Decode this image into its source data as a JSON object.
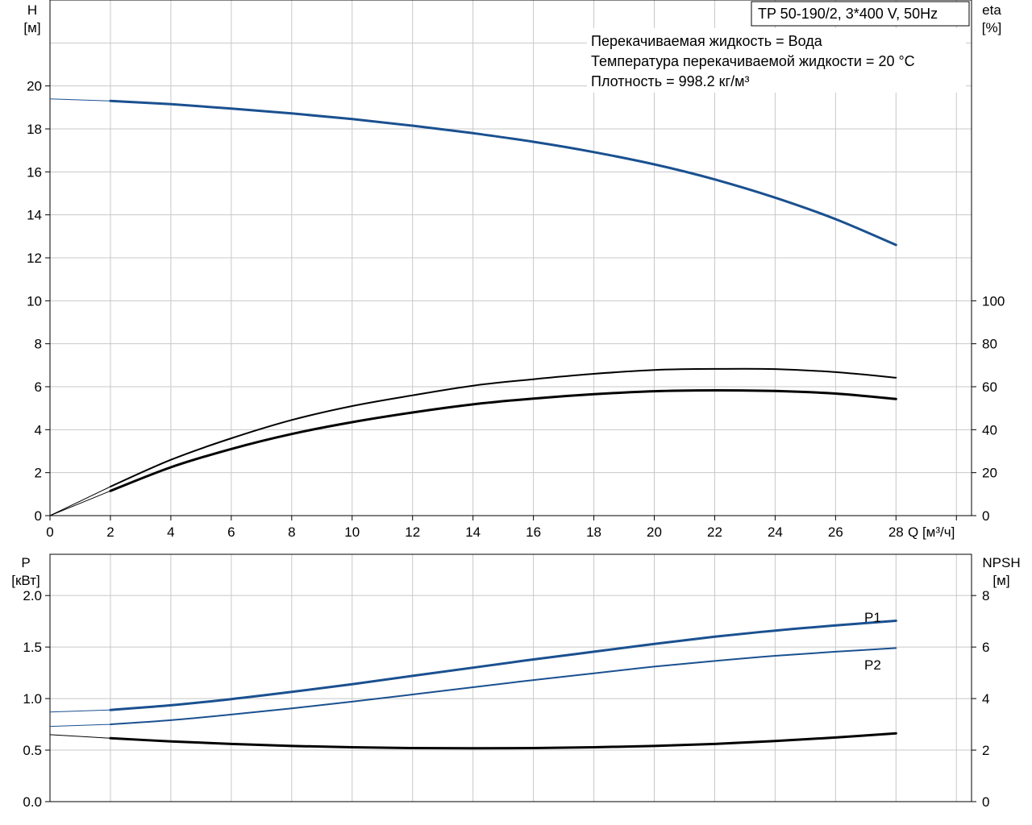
{
  "chart_data": [
    {
      "type": "line",
      "title": "TP 50-190/2, 3*400 V, 50Hz",
      "annotations": [
        "Перекачиваемая жидкость = Вода",
        "Температура перекачиваемой жидкости = 20 °C",
        "Плотность = 998.2 кг/м³"
      ],
      "xlabel": "Q [м³/ч]",
      "xlim": [
        0,
        30.5
      ],
      "x_ticks": [
        "0",
        "2",
        "4",
        "6",
        "8",
        "10",
        "12",
        "14",
        "16",
        "18",
        "20",
        "22",
        "24",
        "26",
        "28"
      ],
      "y_left_label": [
        "H",
        "[м]"
      ],
      "y_left_lim": [
        0,
        24
      ],
      "y_left_ticks": [
        "0",
        "2",
        "4",
        "6",
        "8",
        "10",
        "12",
        "14",
        "16",
        "18",
        "20"
      ],
      "y_right_label": [
        "eta",
        "[%]"
      ],
      "y_right_lim": [
        0,
        240
      ],
      "y_right_ticks": [
        "0",
        "20",
        "40",
        "60",
        "80",
        "100"
      ],
      "grid": true,
      "series": [
        {
          "axis": "left",
          "color": "#1a5090",
          "stroke": "thick",
          "x": [
            0,
            2,
            4,
            6,
            8,
            10,
            12,
            14,
            16,
            18,
            20,
            22,
            24,
            26,
            28
          ],
          "values": [
            19.4,
            19.3,
            19.15,
            18.95,
            18.72,
            18.46,
            18.15,
            17.8,
            17.4,
            16.92,
            16.35,
            15.65,
            14.8,
            13.8,
            12.6
          ]
        },
        {
          "axis": "right",
          "color": "#000000",
          "stroke": "thin",
          "x": [
            0,
            2,
            4,
            6,
            8,
            10,
            12,
            14,
            16,
            18,
            20,
            22,
            24,
            26,
            28
          ],
          "values": [
            0,
            13.5,
            26,
            36,
            44.5,
            51,
            56,
            60.5,
            63.5,
            66,
            67.8,
            68.3,
            68.2,
            66.8,
            64.2
          ]
        },
        {
          "axis": "right",
          "color": "#000000",
          "stroke": "thick",
          "x": [
            0,
            2,
            4,
            6,
            8,
            10,
            12,
            14,
            16,
            18,
            20,
            22,
            24,
            26,
            28
          ],
          "values": [
            0,
            11.5,
            22.5,
            31,
            38,
            43.5,
            48,
            51.8,
            54.5,
            56.5,
            57.9,
            58.3,
            58,
            56.8,
            54.3
          ]
        }
      ]
    },
    {
      "type": "line",
      "y_left_label": [
        "P",
        "[кВт]"
      ],
      "y_left_lim": [
        0,
        2.4
      ],
      "y_left_ticks": [
        "0.0",
        "0.5",
        "1.0",
        "1.5",
        "2.0"
      ],
      "y_right_label": [
        "NPSH",
        "[м]"
      ],
      "y_right_lim": [
        0,
        9.6
      ],
      "y_right_ticks": [
        "0",
        "2",
        "4",
        "6",
        "8"
      ],
      "xlim": [
        0,
        30.5
      ],
      "grid": true,
      "series": [
        {
          "name": "P1",
          "axis": "left",
          "color": "#1a5090",
          "stroke": "thick",
          "x": [
            0,
            2,
            4,
            6,
            8,
            10,
            12,
            14,
            16,
            18,
            20,
            22,
            24,
            26,
            28
          ],
          "values": [
            0.87,
            0.89,
            0.935,
            0.995,
            1.065,
            1.14,
            1.22,
            1.3,
            1.38,
            1.455,
            1.53,
            1.6,
            1.66,
            1.71,
            1.755
          ]
        },
        {
          "name": "P2",
          "axis": "left",
          "color": "#1a5090",
          "stroke": "thin",
          "x": [
            0,
            2,
            4,
            6,
            8,
            10,
            12,
            14,
            16,
            18,
            20,
            22,
            24,
            26,
            28
          ],
          "values": [
            0.73,
            0.75,
            0.79,
            0.845,
            0.905,
            0.97,
            1.04,
            1.11,
            1.18,
            1.245,
            1.31,
            1.365,
            1.415,
            1.455,
            1.49
          ]
        },
        {
          "axis": "right",
          "color": "#000000",
          "stroke": "thick",
          "x": [
            0,
            2,
            4,
            6,
            8,
            10,
            12,
            14,
            16,
            18,
            20,
            22,
            24,
            26,
            28
          ],
          "values": [
            2.6,
            2.46,
            2.34,
            2.24,
            2.16,
            2.11,
            2.08,
            2.07,
            2.08,
            2.11,
            2.16,
            2.24,
            2.35,
            2.49,
            2.65
          ]
        }
      ]
    }
  ]
}
